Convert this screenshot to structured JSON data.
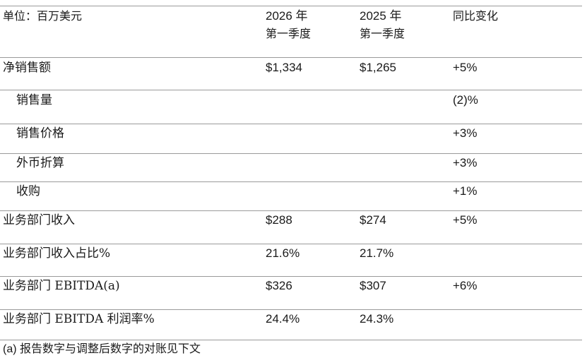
{
  "header": {
    "unit_label": "单位：百万美元",
    "col_2026_line1": "2026 年",
    "col_2026_line2": "第一季度",
    "col_2025_line1": "2025 年",
    "col_2025_line2": "第一季度",
    "col_change": "同比变化"
  },
  "rows": [
    {
      "label": "净销售额",
      "v2026": "$1,334",
      "v2025": "$1,265",
      "change": "+5%"
    },
    {
      "label": "销售量",
      "v2026": "",
      "v2025": "",
      "change": "(2)%"
    },
    {
      "label": "销售价格",
      "v2026": "",
      "v2025": "",
      "change": "+3%"
    },
    {
      "label": "外币折算",
      "v2026": "",
      "v2025": "",
      "change": "+3%"
    },
    {
      "label": "收购",
      "v2026": "",
      "v2025": "",
      "change": "+1%"
    },
    {
      "label": "业务部门收入",
      "v2026": "$288",
      "v2025": "$274",
      "change": "+5%"
    },
    {
      "label": "业务部门收入占比%",
      "v2026": "21.6%",
      "v2025": "21.7%",
      "change": ""
    },
    {
      "label": "业务部门 EBITDA(a)",
      "v2026": "$326",
      "v2025": "$307",
      "change": "+6%"
    },
    {
      "label": "业务部门 EBITDA 利润率%",
      "v2026": "24.4%",
      "v2025": "24.3%",
      "change": ""
    }
  ],
  "footnote": "(a) 报告数字与调整后数字的对账见下文"
}
